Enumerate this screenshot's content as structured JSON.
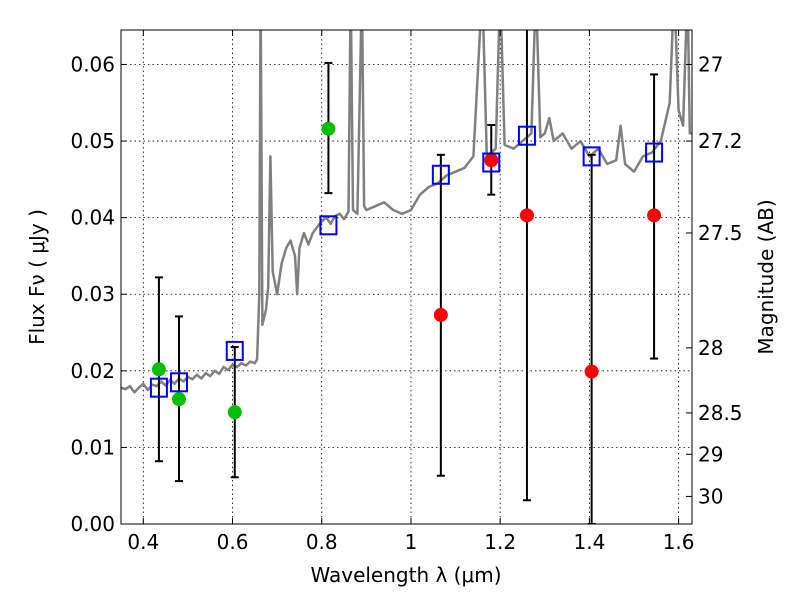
{
  "chart_data": {
    "type": "scatter",
    "xlabel": "Wavelength  λ (μm)",
    "ylabel": "Flux  Fν  ( μJy )",
    "ylabel_right": "Magnitude (AB)",
    "xlim": [
      0.35,
      1.63
    ],
    "ylim": [
      0.0,
      0.0645
    ],
    "grid": true,
    "x_ticks": [
      0.4,
      0.6,
      0.8,
      1.0,
      1.2,
      1.4,
      1.6
    ],
    "x_tick_labels": [
      "0.4",
      "0.6",
      "0.8",
      "1",
      "1.2",
      "1.4",
      "1.6"
    ],
    "y_ticks": [
      0.0,
      0.01,
      0.02,
      0.03,
      0.04,
      0.05,
      0.06
    ],
    "y_tick_labels": [
      "0.00",
      "0.01",
      "0.02",
      "0.03",
      "0.04",
      "0.05",
      "0.06"
    ],
    "right_ticks": [
      {
        "label": "27",
        "flux": 0.06
      },
      {
        "label": "27.2",
        "flux": 0.05
      },
      {
        "label": "27.5",
        "flux": 0.038
      },
      {
        "label": "28",
        "flux": 0.023
      },
      {
        "label": "28.5",
        "flux": 0.0145
      },
      {
        "label": "29",
        "flux": 0.0091
      },
      {
        "label": "30",
        "flux": 0.0036
      }
    ],
    "series": [
      {
        "name": "model spectrum",
        "kind": "line",
        "color": "#808080",
        "points": [
          [
            0.35,
            0.0178
          ],
          [
            0.36,
            0.0176
          ],
          [
            0.37,
            0.018
          ],
          [
            0.38,
            0.0172
          ],
          [
            0.39,
            0.0178
          ],
          [
            0.4,
            0.0183
          ],
          [
            0.41,
            0.0175
          ],
          [
            0.42,
            0.0182
          ],
          [
            0.43,
            0.018
          ],
          [
            0.44,
            0.0186
          ],
          [
            0.45,
            0.0181
          ],
          [
            0.46,
            0.0188
          ],
          [
            0.47,
            0.0183
          ],
          [
            0.48,
            0.019
          ],
          [
            0.49,
            0.0186
          ],
          [
            0.5,
            0.0192
          ],
          [
            0.51,
            0.0189
          ],
          [
            0.52,
            0.0195
          ],
          [
            0.53,
            0.019
          ],
          [
            0.54,
            0.0197
          ],
          [
            0.55,
            0.0193
          ],
          [
            0.56,
            0.02
          ],
          [
            0.57,
            0.0196
          ],
          [
            0.58,
            0.0205
          ],
          [
            0.59,
            0.0201
          ],
          [
            0.6,
            0.0208
          ],
          [
            0.61,
            0.0205
          ],
          [
            0.62,
            0.021
          ],
          [
            0.63,
            0.0207
          ],
          [
            0.64,
            0.0212
          ],
          [
            0.65,
            0.021
          ],
          [
            0.655,
            0.0215
          ],
          [
            0.66,
            0.03
          ],
          [
            0.663,
            0.07
          ],
          [
            0.667,
            0.026
          ],
          [
            0.675,
            0.028
          ],
          [
            0.68,
            0.031
          ],
          [
            0.685,
            0.048
          ],
          [
            0.69,
            0.033
          ],
          [
            0.7,
            0.03
          ],
          [
            0.71,
            0.034
          ],
          [
            0.72,
            0.036
          ],
          [
            0.73,
            0.037
          ],
          [
            0.74,
            0.035
          ],
          [
            0.745,
            0.03
          ],
          [
            0.75,
            0.036
          ],
          [
            0.76,
            0.038
          ],
          [
            0.77,
            0.0365
          ],
          [
            0.78,
            0.038
          ],
          [
            0.79,
            0.0388
          ],
          [
            0.8,
            0.0395
          ],
          [
            0.81,
            0.04
          ],
          [
            0.82,
            0.0392
          ],
          [
            0.83,
            0.0402
          ],
          [
            0.84,
            0.0405
          ],
          [
            0.85,
            0.0398
          ],
          [
            0.86,
            0.0408
          ],
          [
            0.865,
            0.07
          ],
          [
            0.87,
            0.041
          ],
          [
            0.88,
            0.0405
          ],
          [
            0.89,
            0.07
          ],
          [
            0.895,
            0.0415
          ],
          [
            0.9,
            0.041
          ],
          [
            0.92,
            0.0415
          ],
          [
            0.94,
            0.042
          ],
          [
            0.96,
            0.041
          ],
          [
            0.98,
            0.0405
          ],
          [
            1.0,
            0.041
          ],
          [
            1.02,
            0.043
          ],
          [
            1.04,
            0.044
          ],
          [
            1.06,
            0.0445
          ],
          [
            1.08,
            0.0455
          ],
          [
            1.1,
            0.046
          ],
          [
            1.12,
            0.0465
          ],
          [
            1.14,
            0.048
          ],
          [
            1.16,
            0.07
          ],
          [
            1.17,
            0.048
          ],
          [
            1.19,
            0.049
          ],
          [
            1.2,
            0.07
          ],
          [
            1.21,
            0.0495
          ],
          [
            1.23,
            0.049
          ],
          [
            1.25,
            0.05
          ],
          [
            1.27,
            0.051
          ],
          [
            1.28,
            0.07
          ],
          [
            1.29,
            0.0505
          ],
          [
            1.3,
            0.051
          ],
          [
            1.31,
            0.053
          ],
          [
            1.32,
            0.05
          ],
          [
            1.34,
            0.051
          ],
          [
            1.36,
            0.049
          ],
          [
            1.38,
            0.05
          ],
          [
            1.4,
            0.048
          ],
          [
            1.42,
            0.049
          ],
          [
            1.44,
            0.047
          ],
          [
            1.46,
            0.0475
          ],
          [
            1.47,
            0.052
          ],
          [
            1.48,
            0.047
          ],
          [
            1.5,
            0.046
          ],
          [
            1.52,
            0.048
          ],
          [
            1.54,
            0.0485
          ],
          [
            1.56,
            0.05
          ],
          [
            1.58,
            0.055
          ],
          [
            1.59,
            0.07
          ],
          [
            1.6,
            0.054
          ],
          [
            1.61,
            0.052
          ],
          [
            1.62,
            0.07
          ],
          [
            1.625,
            0.051
          ],
          [
            1.63,
            0.051
          ]
        ]
      },
      {
        "name": "observed flux (green)",
        "kind": "points",
        "color": "#00c000",
        "points": [
          [
            0.435,
            0.0202
          ],
          [
            0.48,
            0.0163
          ],
          [
            0.605,
            0.0146
          ],
          [
            0.815,
            0.0516
          ],
          [
            1.18,
            0.0475
          ]
        ]
      },
      {
        "name": "upper-limit flux (red)",
        "kind": "points",
        "color": "#ff0000",
        "points": [
          [
            1.067,
            0.0273
          ],
          [
            1.18,
            0.0475
          ],
          [
            1.26,
            0.0403
          ],
          [
            1.405,
            0.0199
          ],
          [
            1.545,
            0.0403
          ]
        ]
      },
      {
        "name": "model photometry",
        "kind": "squares",
        "color": "#0000ff",
        "points": [
          [
            0.435,
            0.0178
          ],
          [
            0.48,
            0.0185
          ],
          [
            0.605,
            0.0226
          ],
          [
            0.815,
            0.039
          ],
          [
            1.067,
            0.0456
          ],
          [
            1.18,
            0.0472
          ],
          [
            1.26,
            0.0507
          ],
          [
            1.405,
            0.048
          ],
          [
            1.545,
            0.0485
          ]
        ]
      },
      {
        "name": "error bars",
        "kind": "errorbars",
        "color": "#000000",
        "bars": [
          {
            "x": 0.435,
            "low": 0.0082,
            "high": 0.0322
          },
          {
            "x": 0.48,
            "low": 0.0056,
            "high": 0.0271
          },
          {
            "x": 0.605,
            "low": 0.0061,
            "high": 0.0231
          },
          {
            "x": 0.815,
            "low": 0.0432,
            "high": 0.0602
          },
          {
            "x": 1.067,
            "low": 0.0063,
            "high": 0.0482
          },
          {
            "x": 1.18,
            "low": 0.043,
            "high": 0.0521
          },
          {
            "x": 1.26,
            "low": 0.0031,
            "high": 0.07
          },
          {
            "x": 1.405,
            "low": 0.0,
            "high": 0.0482
          },
          {
            "x": 1.545,
            "low": 0.0216,
            "high": 0.0587
          }
        ]
      }
    ]
  }
}
